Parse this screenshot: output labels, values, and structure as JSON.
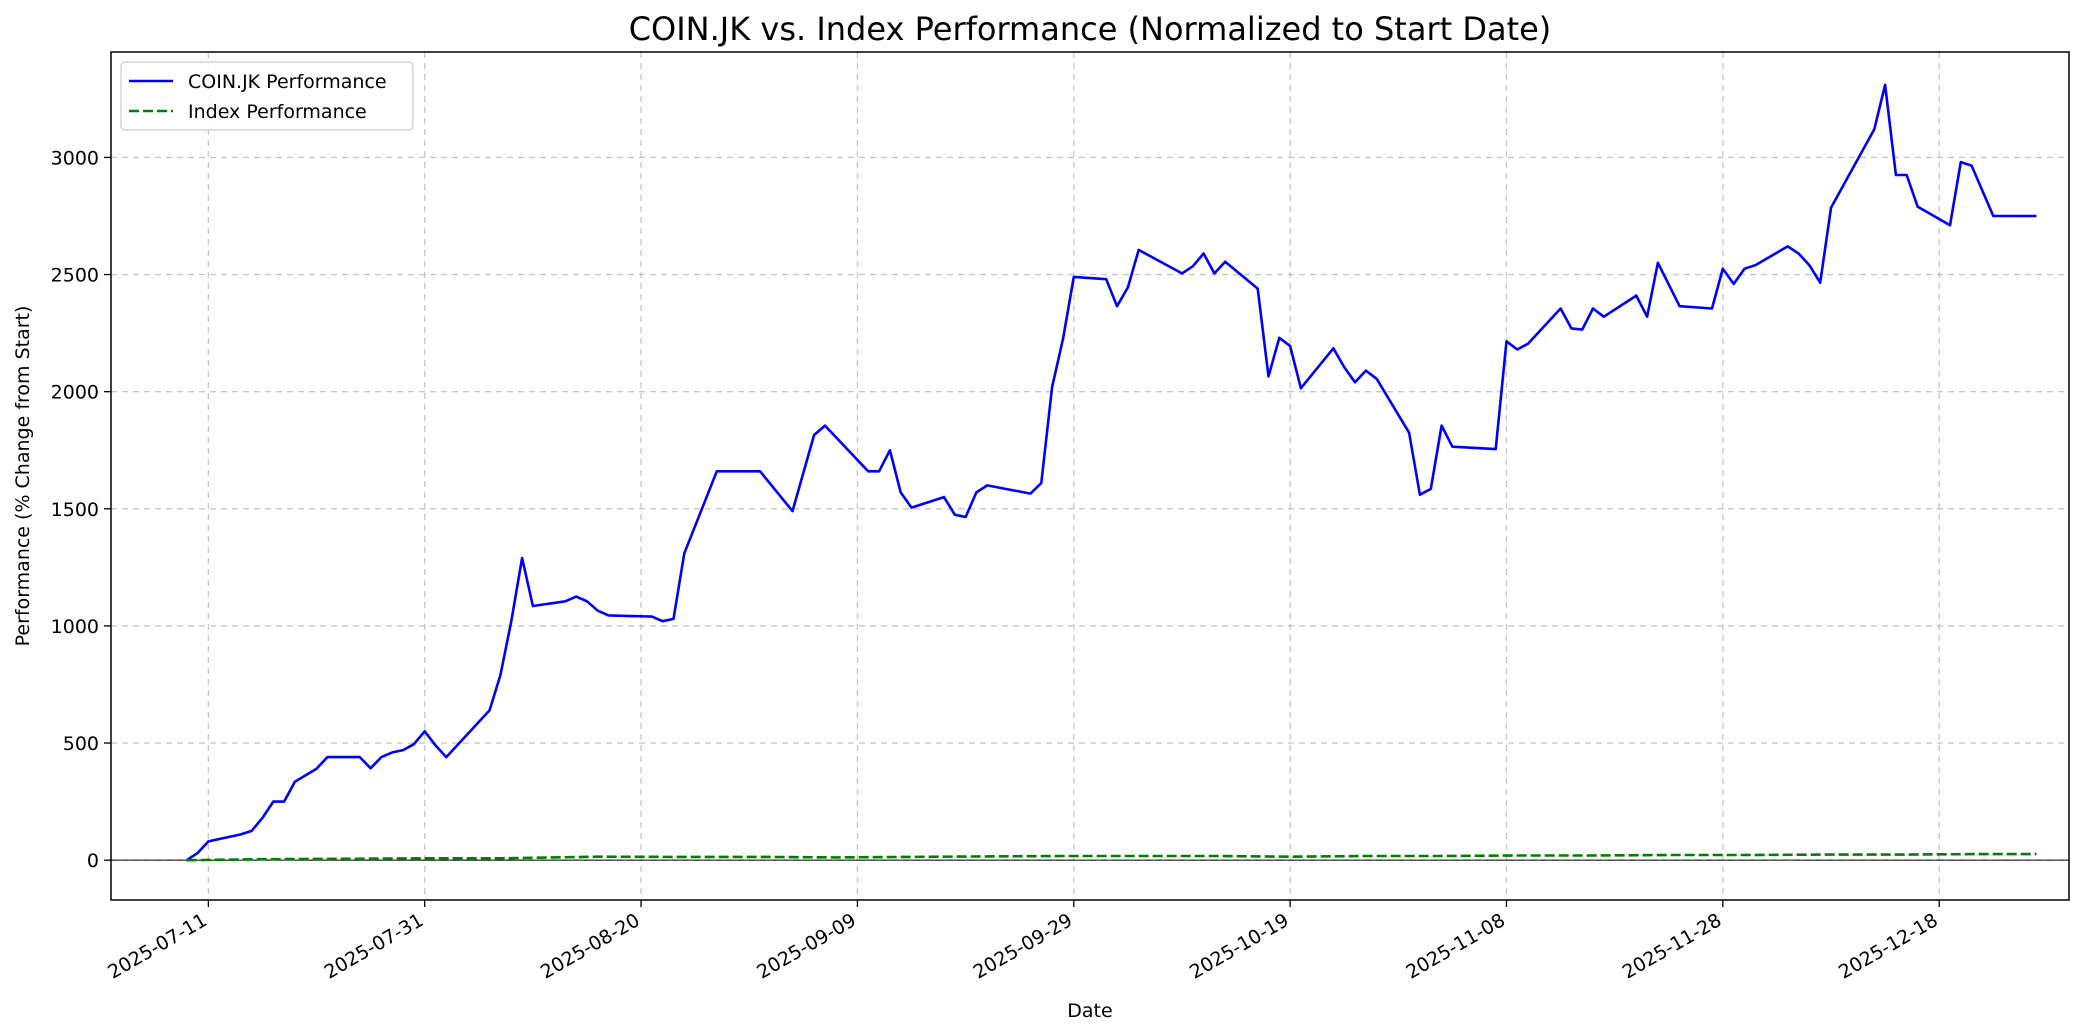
{
  "chart_data": {
    "type": "line",
    "title": "COIN.JK vs. Index Performance (Normalized to Start Date)",
    "xlabel": "Date",
    "ylabel": "Performance (% Change from Start)",
    "ylim": [
      -170,
      3450
    ],
    "xlim": [
      "2025-07-02",
      "2025-12-30"
    ],
    "yticks": [
      0,
      500,
      1000,
      1500,
      2000,
      2500,
      3000
    ],
    "xticks": [
      "2025-07-11",
      "2025-07-31",
      "2025-08-20",
      "2025-09-09",
      "2025-09-29",
      "2025-10-19",
      "2025-11-08",
      "2025-11-28",
      "2025-12-18"
    ],
    "grid": true,
    "legend": "top-left",
    "baseline": 0,
    "series": [
      {
        "name": "COIN.JK Performance",
        "color": "#0000ff",
        "style": "solid",
        "points": [
          [
            "2025-07-09",
            0
          ],
          [
            "2025-07-10",
            30
          ],
          [
            "2025-07-11",
            80
          ],
          [
            "2025-07-14",
            110
          ],
          [
            "2025-07-15",
            125
          ],
          [
            "2025-07-16",
            180
          ],
          [
            "2025-07-17",
            250
          ],
          [
            "2025-07-18",
            250
          ],
          [
            "2025-07-19",
            335
          ],
          [
            "2025-07-21",
            390
          ],
          [
            "2025-07-22",
            440
          ],
          [
            "2025-07-24",
            440
          ],
          [
            "2025-07-25",
            440
          ],
          [
            "2025-07-26",
            392
          ],
          [
            "2025-07-27",
            440
          ],
          [
            "2025-07-29",
            470
          ],
          [
            "2025-07-30",
            495
          ],
          [
            "2025-07-28",
            460
          ],
          [
            "2025-07-29",
            470
          ],
          [
            "2025-07-30",
            495
          ],
          [
            "2025-07-31",
            550
          ],
          [
            "2025-08-01",
            490
          ],
          [
            "2025-08-02",
            440
          ],
          [
            "2025-08-06",
            640
          ],
          [
            "2025-08-07",
            790
          ],
          [
            "2025-08-08",
            1020
          ],
          [
            "2025-08-09",
            1290
          ],
          [
            "2025-08-10",
            1085
          ],
          [
            "2025-08-13",
            1105
          ],
          [
            "2025-08-14",
            1125
          ],
          [
            "2025-08-15",
            1105
          ],
          [
            "2025-08-16",
            1065
          ],
          [
            "2025-08-17",
            1045
          ],
          [
            "2025-08-21",
            1040
          ],
          [
            "2025-08-22",
            1020
          ],
          [
            "2025-08-23",
            1030
          ],
          [
            "2025-08-24",
            1310
          ],
          [
            "2025-08-27",
            1660
          ],
          [
            "2025-08-31",
            1660
          ],
          [
            "2025-09-03",
            1490
          ],
          [
            "2025-09-05",
            1815
          ],
          [
            "2025-09-06",
            1855
          ],
          [
            "2025-09-10",
            1660
          ],
          [
            "2025-09-11",
            1660
          ],
          [
            "2025-09-12",
            1750
          ],
          [
            "2025-09-13",
            1570
          ],
          [
            "2025-09-14",
            1505
          ],
          [
            "2025-09-17",
            1550
          ],
          [
            "2025-09-18",
            1475
          ],
          [
            "2025-09-19",
            1465
          ],
          [
            "2025-09-20",
            1570
          ],
          [
            "2025-09-21",
            1600
          ],
          [
            "2025-09-25",
            1565
          ],
          [
            "2025-09-26",
            1610
          ],
          [
            "2025-09-27",
            2020
          ],
          [
            "2025-09-28",
            2225
          ],
          [
            "2025-09-29",
            2490
          ],
          [
            "2025-10-02",
            2480
          ],
          [
            "2025-10-03",
            2365
          ],
          [
            "2025-10-04",
            2445
          ],
          [
            "2025-10-05",
            2605
          ],
          [
            "2025-10-09",
            2505
          ],
          [
            "2025-10-10",
            2535
          ],
          [
            "2025-10-11",
            2590
          ],
          [
            "2025-10-12",
            2505
          ],
          [
            "2025-10-13",
            2555
          ],
          [
            "2025-10-16",
            2440
          ],
          [
            "2025-10-17",
            2065
          ],
          [
            "2025-10-18",
            2230
          ],
          [
            "2025-10-19",
            2195
          ],
          [
            "2025-10-20",
            2015
          ],
          [
            "2025-10-23",
            2185
          ],
          [
            "2025-10-24",
            2105
          ],
          [
            "2025-10-25",
            2040
          ],
          [
            "2025-10-26",
            2090
          ],
          [
            "2025-10-27",
            2055
          ],
          [
            "2025-10-30",
            1825
          ],
          [
            "2025-10-31",
            1560
          ],
          [
            "2025-11-01",
            1585
          ],
          [
            "2025-11-02",
            1855
          ],
          [
            "2025-11-03",
            1765
          ],
          [
            "2025-11-07",
            1755
          ],
          [
            "2025-11-08",
            2215
          ],
          [
            "2025-11-09",
            2180
          ],
          [
            "2025-11-10",
            2205
          ],
          [
            "2025-11-13",
            2355
          ],
          [
            "2025-11-14",
            2270
          ],
          [
            "2025-11-15",
            2265
          ],
          [
            "2025-11-16",
            2355
          ],
          [
            "2025-11-17",
            2320
          ],
          [
            "2025-11-20",
            2410
          ],
          [
            "2025-11-21",
            2320
          ],
          [
            "2025-11-22",
            2550
          ],
          [
            "2025-11-24",
            2365
          ],
          [
            "2025-11-27",
            2355
          ],
          [
            "2025-11-28",
            2525
          ],
          [
            "2025-11-29",
            2460
          ],
          [
            "2025-11-30",
            2525
          ],
          [
            "2025-12-01",
            2540
          ],
          [
            "2025-12-04",
            2620
          ],
          [
            "2025-12-05",
            2590
          ],
          [
            "2025-12-06",
            2540
          ],
          [
            "2025-12-07",
            2465
          ],
          [
            "2025-12-08",
            2785
          ],
          [
            "2025-12-12",
            3120
          ],
          [
            "2025-12-13",
            3310
          ],
          [
            "2025-12-14",
            2925
          ],
          [
            "2025-12-15",
            2925
          ],
          [
            "2025-12-16",
            2790
          ],
          [
            "2025-12-19",
            2710
          ],
          [
            "2025-12-20",
            2980
          ],
          [
            "2025-12-21",
            2965
          ],
          [
            "2025-12-23",
            2750
          ],
          [
            "2025-12-27",
            2750
          ]
        ]
      },
      {
        "name": "Index Performance",
        "color": "#008000",
        "style": "dashed",
        "points": [
          [
            "2025-07-09",
            0
          ],
          [
            "2025-07-16",
            4
          ],
          [
            "2025-07-24",
            6
          ],
          [
            "2025-07-31",
            8
          ],
          [
            "2025-08-07",
            8
          ],
          [
            "2025-08-16",
            15
          ],
          [
            "2025-08-23",
            14
          ],
          [
            "2025-08-31",
            14
          ],
          [
            "2025-09-07",
            12
          ],
          [
            "2025-09-14",
            14
          ],
          [
            "2025-09-21",
            16
          ],
          [
            "2025-09-28",
            18
          ],
          [
            "2025-10-05",
            18
          ],
          [
            "2025-10-12",
            18
          ],
          [
            "2025-10-19",
            15
          ],
          [
            "2025-10-26",
            18
          ],
          [
            "2025-11-02",
            18
          ],
          [
            "2025-11-09",
            20
          ],
          [
            "2025-11-16",
            20
          ],
          [
            "2025-11-23",
            22
          ],
          [
            "2025-11-30",
            22
          ],
          [
            "2025-12-07",
            24
          ],
          [
            "2025-12-14",
            24
          ],
          [
            "2025-12-21",
            26
          ],
          [
            "2025-12-27",
            26
          ]
        ]
      }
    ]
  }
}
